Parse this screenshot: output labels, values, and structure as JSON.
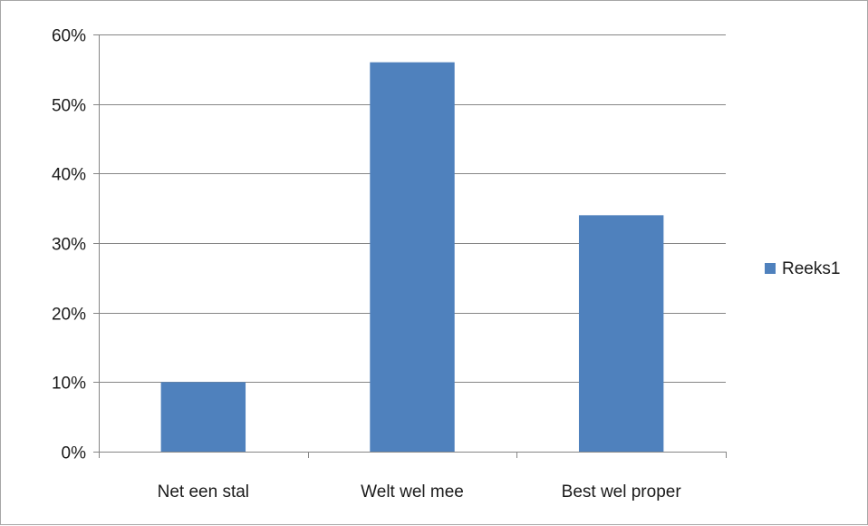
{
  "chart_data": {
    "type": "bar",
    "categories": [
      "Net een stal",
      "Welt wel mee",
      "Best wel proper"
    ],
    "series": [
      {
        "name": "Reeks1",
        "values": [
          0.1,
          0.56,
          0.34
        ],
        "color": "#4f81bd"
      }
    ],
    "ylim": [
      0,
      0.6
    ],
    "yticks": [
      0,
      0.1,
      0.2,
      0.3,
      0.4,
      0.5,
      0.6
    ],
    "ytick_labels": [
      "0%",
      "10%",
      "20%",
      "30%",
      "40%",
      "50%",
      "60%"
    ],
    "grid": true,
    "legend_position": "right",
    "title": "",
    "xlabel": "",
    "ylabel": ""
  }
}
